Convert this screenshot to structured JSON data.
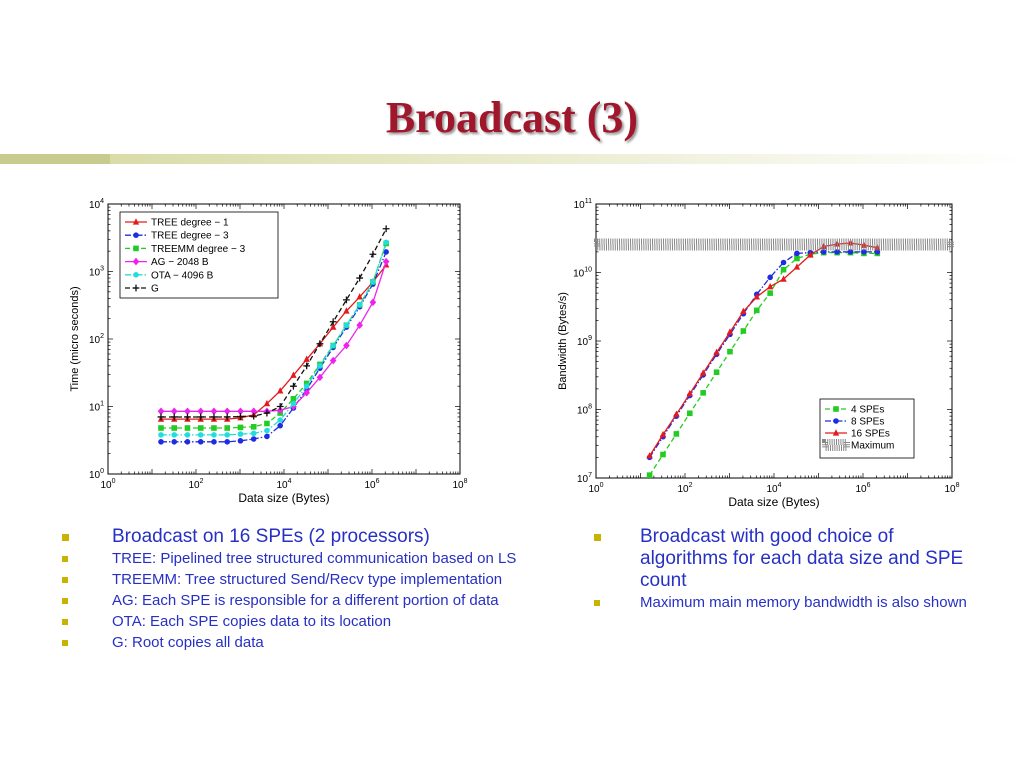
{
  "slide": {
    "title": "Broadcast (3)",
    "left_bullets": [
      {
        "text": "Broadcast on 16 SPEs (2 processors)",
        "level": 1
      },
      {
        "text": "TREE: Pipelined tree structured communication based on LS",
        "level": 2
      },
      {
        "text": "TREEMM: Tree structured Send/Recv type implementation",
        "level": 2
      },
      {
        "text": "AG: Each SPE is responsible for a different portion of data",
        "level": 2
      },
      {
        "text": "OTA: Each SPE copies data to its location",
        "level": 2
      },
      {
        "text": "G: Root copies all data",
        "level": 2
      }
    ],
    "right_bullets": [
      {
        "text": "Broadcast with good choice of algorithms for each data size and SPE count",
        "level": 1
      },
      {
        "text": "Maximum main memory bandwidth is also shown",
        "level": 2
      }
    ]
  },
  "colors": {
    "title": "#a0162b",
    "bullet_text": "#2730c4",
    "bullet_mark": "#c8b400"
  },
  "chart_data": [
    {
      "type": "line",
      "scale": "log-log",
      "xlabel": "Data size (Bytes)",
      "ylabel": "Time (micro seconds)",
      "xlim": [
        1,
        100000000
      ],
      "ylim": [
        1,
        10000
      ],
      "xticks": [
        {
          "value": 1,
          "label": "10^0"
        },
        {
          "value": 100,
          "label": "10^2"
        },
        {
          "value": 10000,
          "label": "10^4"
        },
        {
          "value": 1000000,
          "label": "10^6"
        },
        {
          "value": 100000000,
          "label": "10^8"
        }
      ],
      "yticks": [
        {
          "value": 1,
          "label": "10^0"
        },
        {
          "value": 10,
          "label": "10^1"
        },
        {
          "value": 100,
          "label": "10^2"
        },
        {
          "value": 1000,
          "label": "10^3"
        },
        {
          "value": 10000,
          "label": "10^4"
        }
      ],
      "legend_position": "top-left",
      "x": [
        16,
        32,
        64,
        128,
        256,
        512,
        1024,
        2048,
        4096,
        8192,
        16384,
        32768,
        65536,
        131072,
        262144,
        524288,
        1048576,
        2097152
      ],
      "series": [
        {
          "name": "TREE degree − 1",
          "color": "#e41a1c",
          "marker": "triangle",
          "dash": "solid",
          "values": [
            6.5,
            6.5,
            6.5,
            6.5,
            6.5,
            6.5,
            6.8,
            7.5,
            11,
            17,
            29,
            50,
            85,
            150,
            260,
            420,
            700,
            1250
          ]
        },
        {
          "name": "TREE degree − 3",
          "color": "#1f2de0",
          "marker": "circle",
          "dash": "dashdot",
          "values": [
            3.0,
            3.0,
            3.0,
            3.0,
            3.0,
            3.0,
            3.1,
            3.3,
            3.6,
            5.2,
            9.5,
            18,
            37,
            75,
            150,
            300,
            650,
            1950
          ]
        },
        {
          "name": "TREEMM degree − 3",
          "color": "#22cc22",
          "marker": "square",
          "dash": "dashed",
          "values": [
            4.8,
            4.8,
            4.8,
            4.8,
            4.8,
            4.8,
            4.9,
            5.0,
            5.6,
            8,
            13,
            22,
            42,
            80,
            160,
            320,
            700,
            2600
          ]
        },
        {
          "name": "AG − 2048 B",
          "color": "#ee22ee",
          "marker": "diamond",
          "dash": "solid",
          "values": [
            8.5,
            8.5,
            8.5,
            8.5,
            8.5,
            8.5,
            8.5,
            8.5,
            8.5,
            8.8,
            10,
            16,
            27,
            48,
            80,
            160,
            350,
            1400
          ]
        },
        {
          "name": "OTA − 4096 B",
          "color": "#22dddd",
          "marker": "circle",
          "dash": "dashdot",
          "values": [
            3.8,
            3.8,
            3.8,
            3.8,
            3.8,
            3.8,
            3.9,
            4.0,
            4.4,
            6.3,
            11,
            20,
            40,
            80,
            160,
            320,
            700,
            2700
          ]
        },
        {
          "name": "G",
          "color": "#111111",
          "marker": "plus",
          "dash": "dashed",
          "values": [
            7.0,
            7.0,
            7.0,
            7.0,
            7.0,
            7.0,
            7.1,
            7.2,
            8.0,
            10,
            20,
            40,
            85,
            180,
            380,
            800,
            1800,
            4300
          ]
        }
      ]
    },
    {
      "type": "line",
      "scale": "log-log",
      "xlabel": "Data size (Bytes)",
      "ylabel": "Bandwidth (Bytes/s)",
      "xlim": [
        1,
        100000000
      ],
      "ylim": [
        10000000,
        100000000000
      ],
      "xticks": [
        {
          "value": 1,
          "label": "10^0"
        },
        {
          "value": 100,
          "label": "10^2"
        },
        {
          "value": 10000,
          "label": "10^4"
        },
        {
          "value": 1000000,
          "label": "10^6"
        },
        {
          "value": 100000000,
          "label": "10^8"
        }
      ],
      "yticks": [
        {
          "value": 10000000,
          "label": "10^7"
        },
        {
          "value": 100000000,
          "label": "10^8"
        },
        {
          "value": 1000000000,
          "label": "10^9"
        },
        {
          "value": 10000000000,
          "label": "10^10"
        },
        {
          "value": 100000000000,
          "label": "10^11"
        }
      ],
      "legend_position": "bottom-right",
      "x": [
        16,
        32,
        64,
        128,
        256,
        512,
        1024,
        2048,
        4096,
        8192,
        16384,
        32768,
        65536,
        131072,
        262144,
        524288,
        1048576,
        2097152
      ],
      "series": [
        {
          "name": "4 SPEs",
          "color": "#22cc22",
          "marker": "square",
          "dash": "dashed",
          "values": [
            11000000,
            22000000,
            44000000,
            88000000,
            175000000,
            350000000,
            700000000,
            1400000000,
            2800000000,
            5000000000,
            11000000000,
            16000000000,
            18500000000,
            19500000000,
            19500000000,
            19500000000,
            19000000000,
            19000000000
          ]
        },
        {
          "name": "8 SPEs",
          "color": "#1f2de0",
          "marker": "circle",
          "dash": "dashdot",
          "values": [
            20000000,
            40000000,
            80000000,
            160000000,
            320000000,
            640000000,
            1250000000,
            2500000000,
            4800000000,
            8500000000,
            14000000000,
            19000000000,
            19500000000,
            20000000000,
            20000000000,
            20000000000,
            20000000000,
            20000000000
          ]
        },
        {
          "name": "16 SPEs",
          "color": "#e41a1c",
          "marker": "triangle",
          "dash": "solid",
          "values": [
            21000000,
            43000000,
            85000000,
            170000000,
            340000000,
            680000000,
            1350000000,
            2700000000,
            4400000000,
            6200000000,
            8000000000,
            12000000000,
            18000000000,
            24000000000,
            26000000000,
            27000000000,
            25000000000,
            23000000000
          ]
        },
        {
          "name": "Maximum",
          "color": "#888888",
          "marker": "none",
          "dash": "hatched",
          "constant": 25600000000
        }
      ]
    }
  ]
}
